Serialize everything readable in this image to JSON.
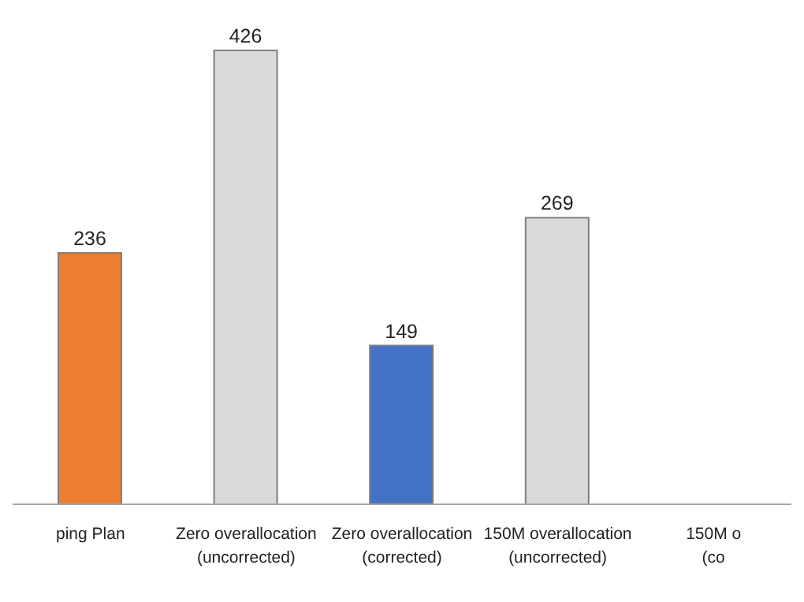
{
  "chart_data": {
    "type": "bar",
    "categories": [
      "ping Plan",
      "Zero overallocation\n(uncorrected)",
      "Zero overallocation\n(corrected)",
      "150M overallocation\n(uncorrected)",
      "150M o\n(co"
    ],
    "values": [
      236,
      426,
      149,
      269,
      null
    ],
    "colors": [
      "#ed7d31",
      "#d9d9d9",
      "#4472c4",
      "#d9d9d9",
      "#d9d9d9"
    ],
    "data_labels": true,
    "grid": false
  }
}
